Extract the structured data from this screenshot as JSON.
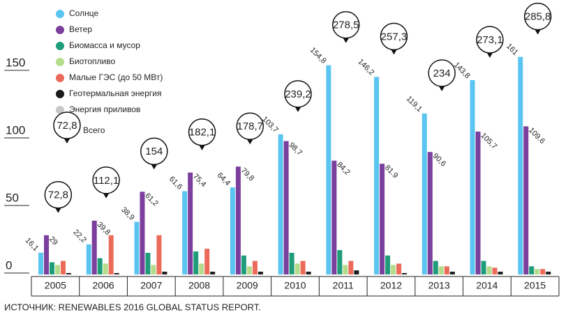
{
  "chart_data": {
    "type": "bar",
    "categories": [
      "2005",
      "2006",
      "2007",
      "2008",
      "2009",
      "2010",
      "2011",
      "2012",
      "2013",
      "2014",
      "2015"
    ],
    "series": [
      {
        "name": "Солнце",
        "color": "#5bc5f2",
        "values": [
          16.1,
          22.2,
          38.9,
          61.6,
          64.4,
          103.7,
          154.8,
          146.2,
          119.1,
          143.8,
          161
        ],
        "value_labels": [
          "16,1",
          "22,2",
          "38,9",
          "61,6",
          "64,4",
          "103,7",
          "154,8",
          "146,2",
          "119,1",
          "143,8",
          "161"
        ]
      },
      {
        "name": "Ветер",
        "color": "#7b3f9e",
        "values": [
          29,
          39.8,
          61.2,
          75.4,
          79.8,
          98.7,
          84.2,
          81.9,
          90.6,
          105.7,
          109.6
        ],
        "value_labels": [
          "29",
          "39,8",
          "61,2",
          "75,4",
          "79,8",
          "98,7",
          "84,2",
          "81.9",
          "90,6",
          "105,7",
          "109.6"
        ]
      },
      {
        "name": "Биомасса и мусор",
        "color": "#1f9d7a",
        "values": [
          9,
          12,
          16,
          17,
          14,
          16,
          18,
          14,
          10,
          10,
          6
        ]
      },
      {
        "name": "Биотопливо",
        "color": "#b5dc8a",
        "values": [
          7,
          8,
          7,
          8,
          6,
          8,
          7,
          7,
          6,
          6,
          4
        ]
      },
      {
        "name": "Малые ГЭС (до 50 МВт)",
        "color": "#ec6a5a",
        "values": [
          10,
          29,
          29,
          19,
          10,
          10,
          10,
          8,
          6,
          5,
          4
        ]
      },
      {
        "name": "Геотермальная энергия",
        "color": "#1a1a1a",
        "values": [
          1,
          1,
          2,
          2,
          2,
          2,
          3,
          1,
          2,
          2,
          2
        ]
      },
      {
        "name": "Энергия приливов",
        "color": "#c8c8c8",
        "values": [
          0,
          0,
          0,
          0,
          0,
          0,
          0,
          0,
          0,
          0,
          0
        ]
      }
    ],
    "totals": {
      "name": "Всего",
      "values": [
        72.8,
        112.1,
        154,
        182.1,
        178.7,
        239.2,
        278.5,
        257.3,
        234,
        273.1,
        285.8
      ],
      "value_labels": [
        "72,8",
        "112,1",
        "154",
        "182,1",
        "178,7",
        "239,2",
        "278,5",
        "257,3",
        "234",
        "273,1",
        "285,8"
      ]
    },
    "ylim": [
      0,
      150
    ],
    "yticks": [
      0,
      50,
      100,
      150
    ],
    "source": "ИСТОЧНИК: RENEWABLES 2016 GLOBAL STATUS REPORT."
  }
}
